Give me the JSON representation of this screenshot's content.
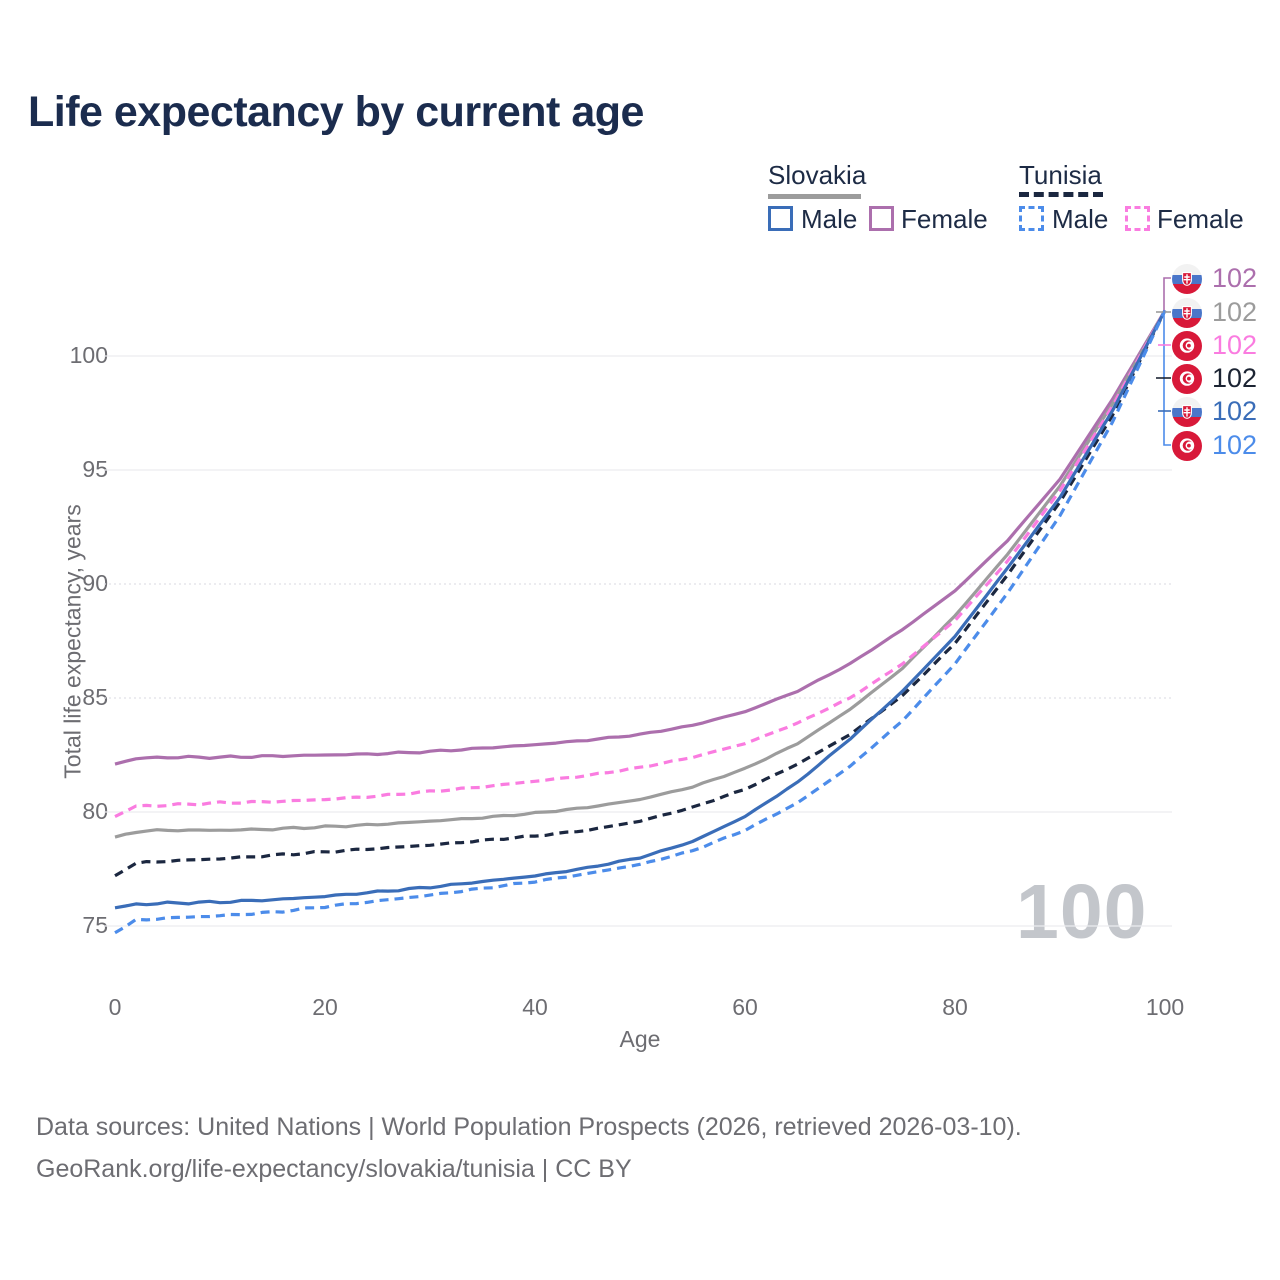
{
  "title": "Life expectancy by current age",
  "watermark": "100",
  "legend": {
    "groups": [
      {
        "label": "Slovakia",
        "line_style": "solid",
        "underline_color": "#9c9c9c",
        "items": [
          {
            "label": "Male",
            "color": "#3a6db8",
            "dashed": false
          },
          {
            "label": "Female",
            "color": "#ac6fad",
            "dashed": false
          }
        ]
      },
      {
        "label": "Tunisia",
        "line_style": "dashed",
        "underline_color": "#1b2740",
        "items": [
          {
            "label": "Male",
            "color": "#4c8cea",
            "dashed": true
          },
          {
            "label": "Female",
            "color": "#fa7ce0",
            "dashed": true
          }
        ]
      }
    ]
  },
  "chart_data": {
    "type": "line",
    "title": "Life expectancy by current age",
    "xlabel": "Age",
    "ylabel": "Total life expectancy, years",
    "x_ticks": [
      0,
      20,
      40,
      60,
      80,
      100
    ],
    "y_ticks": [
      75,
      80,
      85,
      90,
      95,
      100
    ],
    "xlim": [
      0,
      100
    ],
    "ylim": [
      73.5,
      103
    ],
    "grid": "horizontal-only",
    "legend_position": "top-right",
    "series": [
      {
        "name": "Slovakia Female",
        "country": "Slovakia",
        "color": "#ac6fad",
        "dashed": false,
        "anchor_ages": [
          0,
          2,
          5,
          10,
          15,
          20,
          25,
          30,
          35,
          40,
          45,
          50,
          55,
          60,
          65,
          70,
          75,
          80,
          85,
          90,
          95,
          100
        ],
        "anchor_values": [
          82.1,
          82.35,
          82.4,
          82.4,
          82.45,
          82.5,
          82.55,
          82.65,
          82.8,
          82.95,
          83.15,
          83.4,
          83.8,
          84.4,
          85.3,
          86.5,
          88.0,
          89.7,
          91.9,
          94.6,
          98.1,
          102
        ]
      },
      {
        "name": "Slovakia",
        "country": "Slovakia",
        "color": "#9c9c9c",
        "dashed": false,
        "anchor_ages": [
          0,
          2,
          5,
          10,
          15,
          20,
          25,
          30,
          35,
          40,
          45,
          50,
          55,
          60,
          65,
          70,
          75,
          80,
          85,
          90,
          95,
          100
        ],
        "anchor_values": [
          78.9,
          79.15,
          79.2,
          79.2,
          79.25,
          79.35,
          79.45,
          79.6,
          79.75,
          79.95,
          80.2,
          80.55,
          81.1,
          81.9,
          83.0,
          84.5,
          86.3,
          88.6,
          91.3,
          94.3,
          97.9,
          102
        ]
      },
      {
        "name": "Tunisia Female",
        "country": "Tunisia",
        "color": "#fa7ce0",
        "dashed": true,
        "anchor_ages": [
          0,
          2,
          5,
          10,
          15,
          20,
          25,
          30,
          35,
          40,
          45,
          50,
          55,
          60,
          65,
          70,
          75,
          80,
          85,
          90,
          95,
          100
        ],
        "anchor_values": [
          79.8,
          80.25,
          80.3,
          80.4,
          80.45,
          80.55,
          80.7,
          80.9,
          81.1,
          81.35,
          81.6,
          81.95,
          82.4,
          83.0,
          83.9,
          85.0,
          86.5,
          88.4,
          91.0,
          94.1,
          97.8,
          102
        ]
      },
      {
        "name": "Tunisia",
        "country": "Tunisia",
        "color": "#1b2740",
        "dashed": true,
        "anchor_ages": [
          0,
          2,
          5,
          10,
          15,
          20,
          25,
          30,
          35,
          40,
          45,
          50,
          55,
          60,
          65,
          70,
          75,
          80,
          85,
          90,
          95,
          100
        ],
        "anchor_values": [
          77.2,
          77.75,
          77.85,
          77.95,
          78.1,
          78.25,
          78.4,
          78.55,
          78.75,
          78.95,
          79.2,
          79.6,
          80.2,
          81.0,
          82.1,
          83.4,
          85.1,
          87.4,
          90.4,
          93.6,
          97.4,
          102
        ]
      },
      {
        "name": "Slovakia Male",
        "country": "Slovakia",
        "color": "#3a6db8",
        "dashed": false,
        "anchor_ages": [
          0,
          2,
          5,
          10,
          15,
          20,
          25,
          30,
          35,
          40,
          45,
          50,
          55,
          60,
          65,
          70,
          75,
          80,
          85,
          90,
          95,
          100
        ],
        "anchor_values": [
          75.8,
          75.95,
          76.0,
          76.05,
          76.15,
          76.3,
          76.5,
          76.7,
          76.95,
          77.2,
          77.55,
          78.0,
          78.7,
          79.8,
          81.3,
          83.2,
          85.3,
          87.7,
          90.7,
          93.8,
          97.6,
          102
        ]
      },
      {
        "name": "Tunisia Male",
        "country": "Tunisia",
        "color": "#4c8cea",
        "dashed": true,
        "anchor_ages": [
          0,
          2,
          5,
          10,
          15,
          20,
          25,
          30,
          35,
          40,
          45,
          50,
          55,
          60,
          65,
          70,
          75,
          80,
          85,
          90,
          95,
          100
        ],
        "anchor_values": [
          74.7,
          75.25,
          75.35,
          75.45,
          75.6,
          75.85,
          76.1,
          76.35,
          76.65,
          76.95,
          77.3,
          77.7,
          78.3,
          79.2,
          80.4,
          82.0,
          84.0,
          86.5,
          89.6,
          93.0,
          97.1,
          102
        ]
      }
    ]
  },
  "end_labels": {
    "rows": [
      {
        "flag": "slovakia",
        "country": "Slovakia",
        "value": "102",
        "color": "#ac6fad"
      },
      {
        "flag": "slovakia",
        "country": "Slovakia",
        "value": "102",
        "color": "#9c9c9c"
      },
      {
        "flag": "tunisia",
        "country": "Tunisia",
        "value": "102",
        "color": "#fa7ce0"
      },
      {
        "flag": "tunisia",
        "country": "Tunisia",
        "value": "102",
        "color": "#1c2433"
      },
      {
        "flag": "slovakia",
        "country": "Slovakia",
        "value": "102",
        "color": "#3a6db8"
      },
      {
        "flag": "tunisia",
        "country": "Tunisia",
        "value": "102",
        "color": "#4c8cea"
      }
    ]
  },
  "footer": {
    "line1": "Data sources: United Nations | World Population Prospects (2026, retrieved 2026-03-10).",
    "line2": "GeoRank.org/life-expectancy/slovakia/tunisia | CC BY"
  }
}
